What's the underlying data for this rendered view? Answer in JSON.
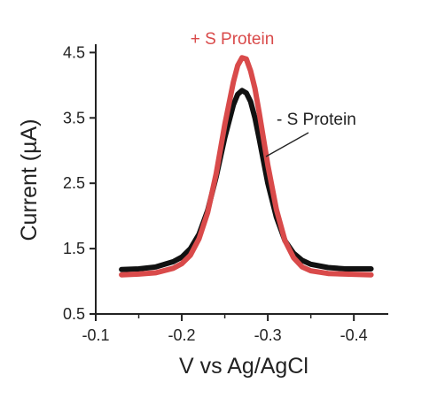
{
  "chart_data": {
    "type": "line",
    "xlabel": "V vs Ag/AgCl",
    "ylabel": "Current (µA)",
    "xlim": [
      -0.1,
      -0.44
    ],
    "ylim": [
      0.5,
      4.6
    ],
    "x_ticks": [
      -0.1,
      -0.2,
      -0.3,
      -0.4
    ],
    "x_tick_labels": [
      "-0.1",
      "-0.2",
      "-0.3",
      "-0.4"
    ],
    "y_ticks": [
      0.5,
      1.5,
      2.5,
      3.5,
      4.5
    ],
    "y_tick_labels": [
      "0.5",
      "1.5",
      "2.5",
      "3.5",
      "4.5"
    ],
    "grid": false,
    "series": [
      {
        "name": "- S Protein",
        "color": "#111111",
        "x": [
          -0.13,
          -0.15,
          -0.17,
          -0.19,
          -0.2,
          -0.21,
          -0.22,
          -0.23,
          -0.24,
          -0.25,
          -0.26,
          -0.265,
          -0.27,
          -0.275,
          -0.28,
          -0.285,
          -0.29,
          -0.3,
          -0.31,
          -0.32,
          -0.33,
          -0.34,
          -0.35,
          -0.37,
          -0.39,
          -0.42
        ],
        "y": [
          1.18,
          1.19,
          1.22,
          1.3,
          1.37,
          1.5,
          1.72,
          2.08,
          2.6,
          3.2,
          3.7,
          3.86,
          3.92,
          3.88,
          3.75,
          3.5,
          3.18,
          2.5,
          1.98,
          1.62,
          1.43,
          1.32,
          1.26,
          1.21,
          1.19,
          1.19
        ]
      },
      {
        "name": "+ S Protein",
        "color": "#d94a4a",
        "x": [
          -0.13,
          -0.15,
          -0.17,
          -0.19,
          -0.2,
          -0.21,
          -0.22,
          -0.23,
          -0.24,
          -0.25,
          -0.26,
          -0.265,
          -0.27,
          -0.275,
          -0.28,
          -0.285,
          -0.29,
          -0.3,
          -0.31,
          -0.32,
          -0.33,
          -0.34,
          -0.35,
          -0.37,
          -0.39,
          -0.42
        ],
        "y": [
          1.1,
          1.11,
          1.13,
          1.2,
          1.27,
          1.4,
          1.65,
          2.05,
          2.65,
          3.4,
          4.05,
          4.3,
          4.42,
          4.4,
          4.22,
          3.95,
          3.58,
          2.78,
          2.1,
          1.62,
          1.36,
          1.22,
          1.16,
          1.12,
          1.11,
          1.1
        ]
      }
    ],
    "annotations": [
      {
        "text": "+ S Protein",
        "series": "+ S Protein",
        "color": "#d94a4a"
      },
      {
        "text": "- S Protein",
        "series": "- S Protein",
        "color": "#222222"
      }
    ]
  }
}
